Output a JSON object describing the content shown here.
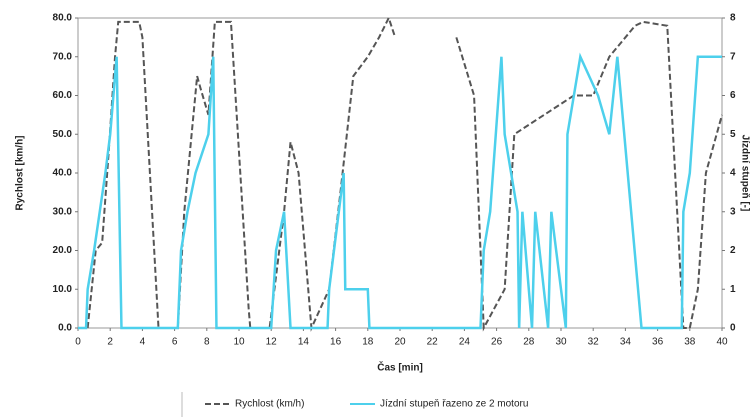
{
  "chart_data": {
    "type": "line",
    "y_label": "Rychlost [km/h]",
    "y2_label": "Jízdní stupeň [-]",
    "x_label": "Čas [min]",
    "xlim": [
      0,
      40
    ],
    "xticks": [
      0,
      2,
      4,
      6,
      8,
      10,
      12,
      14,
      16,
      18,
      20,
      22,
      24,
      26,
      28,
      30,
      32,
      34,
      36,
      38,
      40
    ],
    "ylim": [
      0,
      80
    ],
    "yticks": [
      {
        "value": 0,
        "label": "0.0"
      },
      {
        "value": 10,
        "label": "10.0"
      },
      {
        "value": 20,
        "label": "20.0"
      },
      {
        "value": 30,
        "label": "30.0"
      },
      {
        "value": 40,
        "label": "40.0"
      },
      {
        "value": 50,
        "label": "50.0"
      },
      {
        "value": 60,
        "label": "60.0"
      },
      {
        "value": 70,
        "label": "70.0"
      },
      {
        "value": 80,
        "label": "80.0"
      }
    ],
    "y2lim": [
      0,
      8
    ],
    "y2ticks": [
      0,
      1,
      2,
      3,
      4,
      5,
      6,
      7,
      8
    ],
    "series": [
      {
        "name": "Rychlost (km/h)",
        "color": "#555555",
        "dash": true,
        "x": [
          0.6,
          1.1,
          1.5,
          1.9,
          2.3,
          2.5,
          3.8,
          4.0,
          5.0,
          6.2,
          6.6,
          7.4,
          7.6,
          8.1,
          8.5,
          9.5,
          10.6,
          10.7,
          11.9,
          12.8,
          13.2,
          13.7,
          14.5,
          15.6,
          16.3,
          17.1,
          18.0,
          18.7,
          19.3,
          19.7,
          22.8,
          23.5,
          24.6,
          25.2,
          26.5,
          27.1,
          30.8,
          32.0,
          33.0,
          34.6,
          35.1,
          36.6,
          37.6,
          38.0,
          38.5,
          39.0,
          40.0
        ],
        "values": [
          0,
          20,
          22,
          45,
          70,
          79,
          79,
          75,
          0,
          0,
          30,
          65,
          62,
          55,
          79,
          79,
          5,
          0,
          0,
          30,
          48,
          40,
          0,
          10,
          35,
          65,
          70,
          75,
          80,
          75,
          null,
          75,
          60,
          0,
          10,
          50,
          60,
          60,
          70,
          78,
          79,
          78,
          0,
          0,
          10,
          40,
          55
        ]
      },
      {
        "name": "Jízdní stupeň řazeno ze 2 motoru",
        "color": "#4dd0ec",
        "axis": "y2",
        "x": [
          0.0,
          0.5,
          0.6,
          1.0,
          1.7,
          2.0,
          2.2,
          2.4,
          2.7,
          6.2,
          6.4,
          6.8,
          7.3,
          8.1,
          8.4,
          8.6,
          12.0,
          12.3,
          12.8,
          13.2,
          15.5,
          15.6,
          16.2,
          16.5,
          16.6,
          18.0,
          18.1,
          25.0,
          25.2,
          25.6,
          26.3,
          26.5,
          27.3,
          27.4,
          27.6,
          28.2,
          28.4,
          29.2,
          29.4,
          30.3,
          30.4,
          31.2,
          32.3,
          33.0,
          33.5,
          35.0,
          37.5,
          37.6,
          38.0,
          38.5,
          40.0
        ],
        "values": [
          0,
          0,
          1,
          2,
          4,
          5,
          6,
          7,
          0,
          0,
          2,
          3,
          4,
          5,
          7,
          0,
          0,
          2,
          3,
          0,
          0,
          1,
          3,
          4,
          1,
          1,
          0,
          0,
          2,
          3,
          7,
          5,
          3,
          0,
          3,
          0,
          3,
          0,
          3,
          0,
          5,
          7,
          6,
          5,
          7,
          0,
          0,
          3,
          4,
          7,
          7
        ]
      }
    ]
  }
}
